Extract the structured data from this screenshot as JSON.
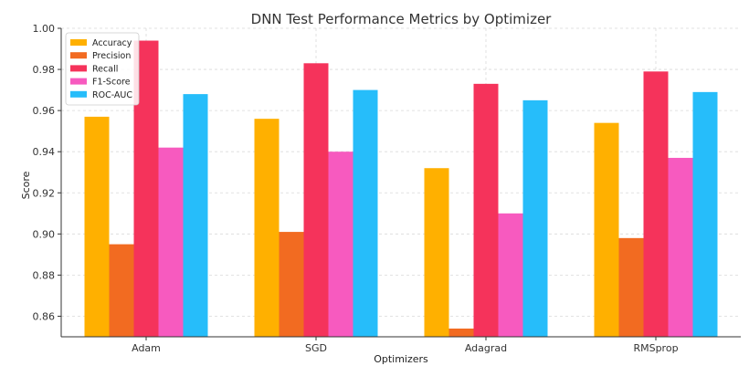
{
  "chart_data": {
    "type": "bar",
    "title": "DNN Test Performance Metrics by Optimizer",
    "xlabel": "Optimizers",
    "ylabel": "Score",
    "categories": [
      "Adam",
      "SGD",
      "Adagrad",
      "RMSprop"
    ],
    "ylim": [
      0.85,
      1.0
    ],
    "yticks": [
      0.86,
      0.88,
      0.9,
      0.92,
      0.94,
      0.96,
      0.98,
      1.0
    ],
    "ytick_labels": [
      "0.86",
      "0.88",
      "0.90",
      "0.92",
      "0.94",
      "0.96",
      "0.98",
      "1.00"
    ],
    "grid": true,
    "legend_position": "top-left",
    "series": [
      {
        "name": "Accuracy",
        "color": "#FFB000",
        "values": [
          0.957,
          0.956,
          0.932,
          0.954
        ]
      },
      {
        "name": "Precision",
        "color": "#F26B21",
        "values": [
          0.895,
          0.901,
          0.854,
          0.898
        ]
      },
      {
        "name": "Recall",
        "color": "#F5335B",
        "values": [
          0.994,
          0.983,
          0.973,
          0.979
        ]
      },
      {
        "name": "F1-Score",
        "color": "#F75ABF",
        "values": [
          0.942,
          0.94,
          0.91,
          0.937
        ]
      },
      {
        "name": "ROC-AUC",
        "color": "#26BDFA",
        "values": [
          0.968,
          0.97,
          0.965,
          0.969
        ]
      }
    ]
  }
}
